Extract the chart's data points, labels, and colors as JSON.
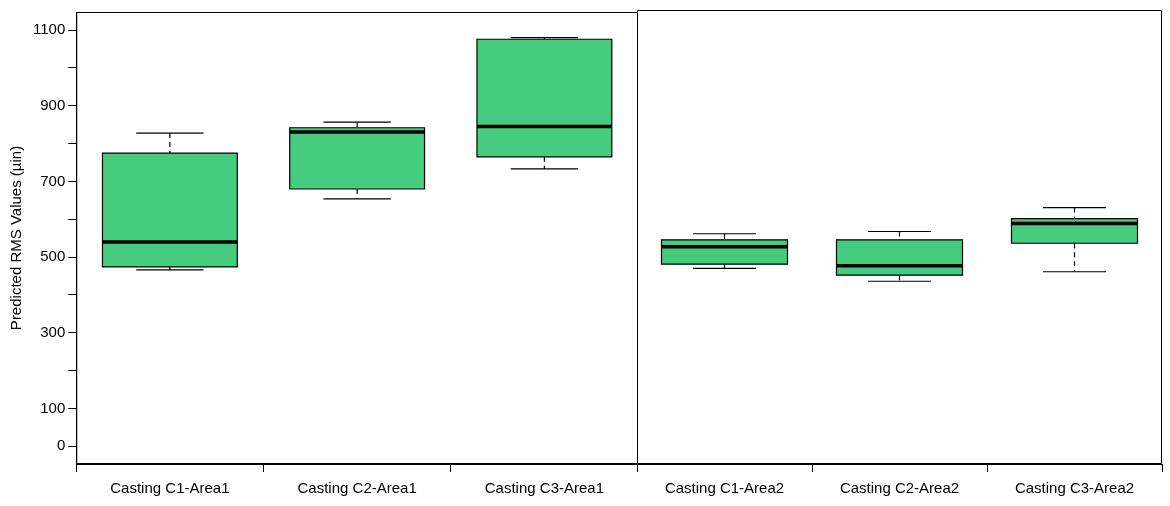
{
  "chart_data": [
    {
      "type": "box",
      "ylabel": "Predicted RMS Values (µin)",
      "categories": [
        "Casting C1-Area1",
        "Casting C2-Area1",
        "Casting C3-Area1"
      ],
      "color": "#45cc7f",
      "boxes": [
        {
          "low": 466,
          "q1": 474,
          "median": 540,
          "q3": 775,
          "high": 828
        },
        {
          "low": 654,
          "q1": 680,
          "median": 831,
          "q3": 842,
          "high": 857
        },
        {
          "low": 733,
          "q1": 765,
          "median": 845,
          "q3": 1076,
          "high": 1080
        }
      ],
      "ylim": [
        -47,
        1148
      ],
      "yticks": [
        0,
        100,
        {
          "value": 200,
          "label": null
        },
        300,
        {
          "value": 400,
          "label": null
        },
        500,
        {
          "value": 600,
          "label": null
        },
        700,
        {
          "value": 800,
          "label": null
        },
        900,
        {
          "value": 1000,
          "label": null
        },
        1100
      ],
      "grid": false,
      "legend": false
    },
    {
      "type": "box",
      "categories": [
        "Casting C1-Area2",
        "Casting C2-Area2",
        "Casting C3-Area2"
      ],
      "color": "#45cc7f",
      "boxes": [
        {
          "low": 468,
          "q1": 479,
          "median": 525,
          "q3": 543,
          "high": 559
        },
        {
          "low": 434,
          "q1": 450,
          "median": 475,
          "q3": 543,
          "high": 565
        },
        {
          "low": 459,
          "q1": 534,
          "median": 586,
          "q3": 599,
          "high": 628
        }
      ],
      "ylim": [
        -47,
        1148
      ],
      "tick_labels": "x",
      "grid": false,
      "legend": false
    }
  ]
}
